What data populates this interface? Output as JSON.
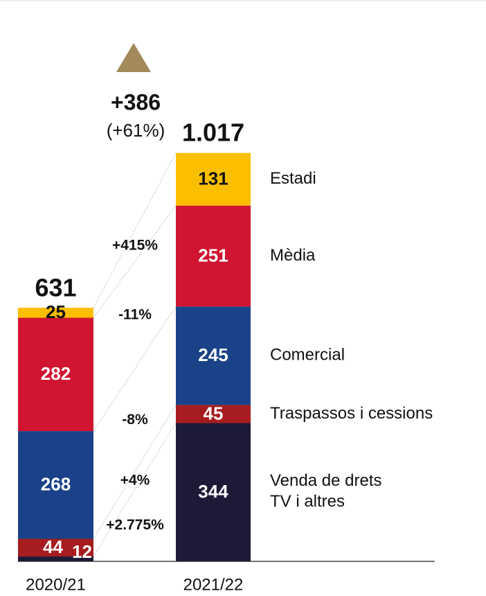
{
  "chart_data": {
    "type": "stacked-bar",
    "categories": [
      "2020/21",
      "2021/22"
    ],
    "series": [
      {
        "name": "Venda de drets TV i altres",
        "color": "#1c1a36",
        "values": [
          12,
          344
        ],
        "change": "+2.775%"
      },
      {
        "name": "Traspassos i cessions",
        "color": "#a61c1f",
        "values": [
          44,
          45
        ],
        "change": "+4%"
      },
      {
        "name": "Comercial",
        "color": "#1a4289",
        "values": [
          268,
          245
        ],
        "change": "-8%"
      },
      {
        "name": "Mèdia",
        "color": "#d01431",
        "values": [
          282,
          251
        ],
        "change": "-11%"
      },
      {
        "name": "Estadi",
        "color": "#fbbf00",
        "values": [
          25,
          131
        ],
        "change": "+415%"
      }
    ],
    "totals": {
      "values": [
        631,
        1017
      ],
      "value_labels": [
        "631",
        "1.017"
      ]
    },
    "annotation": {
      "difference": "+386",
      "percent": "(+61%)"
    }
  }
}
